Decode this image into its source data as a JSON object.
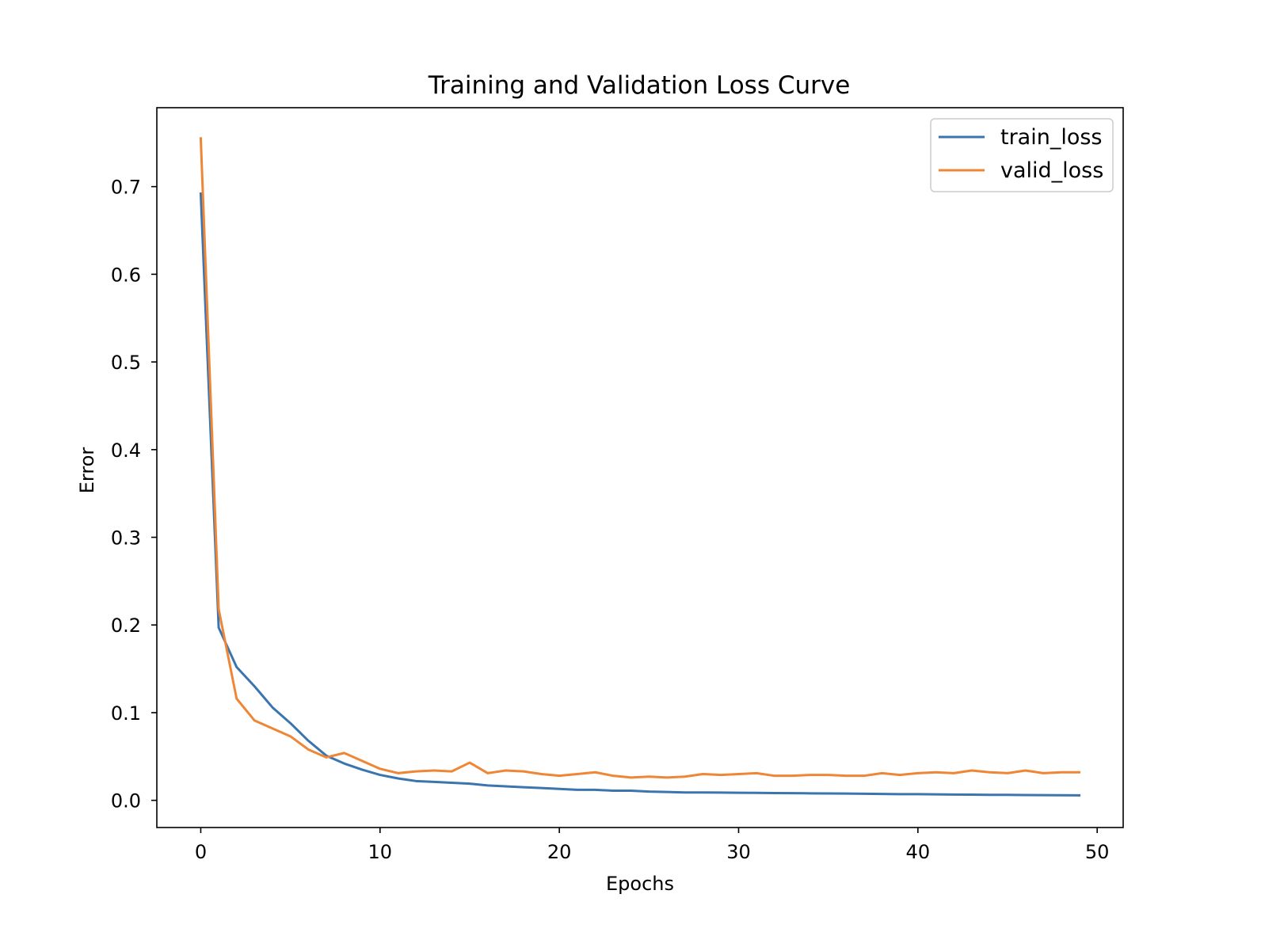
{
  "chart_data": {
    "type": "line",
    "title": "Training and Validation Loss Curve",
    "xlabel": "Epochs",
    "ylabel": "Error",
    "xlim": [
      -2.45,
      51.45
    ],
    "ylim": [
      -0.031,
      0.79
    ],
    "xticks": [
      0,
      10,
      20,
      30,
      40,
      50
    ],
    "yticks": [
      0.0,
      0.1,
      0.2,
      0.3,
      0.4,
      0.5,
      0.6,
      0.7
    ],
    "ytick_labels": [
      "0.0",
      "0.1",
      "0.2",
      "0.3",
      "0.4",
      "0.5",
      "0.6",
      "0.7"
    ],
    "grid": false,
    "legend_position": "top-right",
    "x": [
      0,
      1,
      2,
      3,
      4,
      5,
      6,
      7,
      8,
      9,
      10,
      11,
      12,
      13,
      14,
      15,
      16,
      17,
      18,
      19,
      20,
      21,
      22,
      23,
      24,
      25,
      26,
      27,
      28,
      29,
      30,
      31,
      32,
      33,
      34,
      35,
      36,
      37,
      38,
      39,
      40,
      41,
      42,
      43,
      44,
      45,
      46,
      47,
      48,
      49
    ],
    "series": [
      {
        "name": "train_loss",
        "color": "#3a75b0",
        "values": [
          0.692,
          0.197,
          0.152,
          0.13,
          0.106,
          0.088,
          0.068,
          0.051,
          0.042,
          0.035,
          0.029,
          0.025,
          0.022,
          0.021,
          0.02,
          0.019,
          0.017,
          0.016,
          0.015,
          0.014,
          0.013,
          0.012,
          0.012,
          0.011,
          0.011,
          0.01,
          0.0095,
          0.009,
          0.009,
          0.0088,
          0.0086,
          0.0085,
          0.0083,
          0.0082,
          0.008,
          0.0078,
          0.0077,
          0.0075,
          0.0073,
          0.0071,
          0.007,
          0.0068,
          0.0066,
          0.0065,
          0.0063,
          0.0062,
          0.006,
          0.0059,
          0.0058,
          0.0057
        ]
      },
      {
        "name": "valid_loss",
        "color": "#ef8636",
        "values": [
          0.755,
          0.218,
          0.116,
          0.091,
          0.082,
          0.073,
          0.058,
          0.049,
          0.054,
          0.045,
          0.036,
          0.031,
          0.033,
          0.034,
          0.033,
          0.043,
          0.031,
          0.034,
          0.033,
          0.03,
          0.028,
          0.03,
          0.032,
          0.028,
          0.026,
          0.027,
          0.026,
          0.027,
          0.03,
          0.029,
          0.03,
          0.031,
          0.028,
          0.028,
          0.029,
          0.029,
          0.028,
          0.028,
          0.031,
          0.029,
          0.031,
          0.032,
          0.031,
          0.034,
          0.032,
          0.031,
          0.034,
          0.031,
          0.032,
          0.032
        ]
      }
    ]
  }
}
